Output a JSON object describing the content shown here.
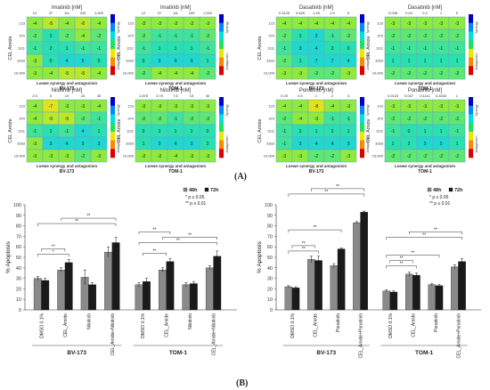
{
  "panels": {
    "a_label": "(A)",
    "b_label": "(B)"
  },
  "colors": {
    "cell_mid": "#2fe3a8",
    "cell_green": "#7cea4a",
    "cell_yellow": "#cdea30",
    "heat_grid": "#6fa0c8",
    "bar_48h": "#8a8a8a",
    "bar_72h": "#1a1a1a",
    "bracket": "#333333"
  },
  "chart_data": [
    {
      "id": "imatinib-bv173",
      "type": "heatmap",
      "title": "Imatinib [nM]",
      "x_ticks": [
        "12",
        "37",
        "111",
        "333",
        "1,000"
      ],
      "y_ticks": [
        "123",
        "370",
        "1111",
        "3333",
        "10,000"
      ],
      "ylabel": "CEL Amide",
      "xlabel": "Loewe synergy and antagonism",
      "cell_line": "BV-173",
      "legend": {
        "top": "Synergy",
        "bottom": "Antagonism"
      },
      "values": [
        [
          -4,
          -5,
          -4,
          -6,
          -4
        ],
        [
          -2,
          1,
          -2,
          -4,
          -2
        ],
        [
          -1,
          2,
          1,
          -1,
          -1
        ],
        [
          -3,
          0,
          4,
          5,
          0
        ],
        [
          -3,
          -4,
          -5,
          -5,
          -4
        ]
      ]
    },
    {
      "id": "imatinib-tom1",
      "type": "heatmap",
      "title": "Imatinib [nM]",
      "x_ticks": [
        "12",
        "37",
        "111",
        "333",
        "1,000"
      ],
      "y_ticks": [
        "123",
        "370",
        "1111",
        "3333",
        "10,000"
      ],
      "ylabel": "CEL Amide",
      "xlabel": "Loewe synergy and antagonism",
      "cell_line": "TOM-1",
      "legend": {
        "top": "Synergy",
        "bottom": "Antagonism"
      },
      "values": [
        [
          -3,
          -3,
          -3,
          -3,
          -3
        ],
        [
          -2,
          -1,
          -1,
          -1,
          -2
        ],
        [
          -1,
          1,
          1,
          1,
          -1
        ],
        [
          0,
          3,
          4,
          4,
          1
        ],
        [
          -2,
          -4,
          -4,
          -4,
          -2
        ]
      ]
    },
    {
      "id": "dasatinib-bv173",
      "type": "heatmap",
      "title": "Dasatinib [nM]",
      "x_ticks": [
        "0.3125",
        "0.625",
        "1.25",
        "2.5",
        "5"
      ],
      "y_ticks": [
        "123",
        "370",
        "1111",
        "3333",
        "10,000"
      ],
      "ylabel": "CEL Amide",
      "xlabel": "Loewe synergy and antagonism",
      "cell_line": "BV-173",
      "legend": {
        "top": "Synergy",
        "bottom": "Antagonism"
      },
      "values": [
        [
          -4,
          -4,
          -4,
          -4,
          -4
        ],
        [
          -2,
          1,
          3,
          -1,
          -2
        ],
        [
          -1,
          3,
          4,
          2,
          0
        ],
        [
          -2,
          1,
          7,
          7,
          4
        ],
        [
          -3,
          -3,
          -2,
          -2,
          -3
        ]
      ]
    },
    {
      "id": "dasatinib-tom1",
      "type": "heatmap",
      "title": "Dasatinib [nM]",
      "x_ticks": [
        "0.008",
        "0.04",
        "0.2",
        "1",
        "5"
      ],
      "y_ticks": [
        "123",
        "370",
        "1111",
        "3333",
        "10,000"
      ],
      "ylabel": "CEL Amide",
      "xlabel": "Loewe synergy and antagonism",
      "cell_line": "TOM-1",
      "legend": {
        "top": "Synergy",
        "bottom": "Antagonism"
      },
      "values": [
        [
          -3,
          -3,
          -3,
          -3,
          -3
        ],
        [
          -2,
          -2,
          -2,
          -2,
          -2
        ],
        [
          -1,
          -1,
          -1,
          -1,
          -1
        ],
        [
          1,
          1,
          1,
          1,
          1
        ],
        [
          -2,
          -2,
          -2,
          -2,
          -2
        ]
      ]
    },
    {
      "id": "nilotinib-bv173",
      "type": "heatmap",
      "title": "Nilotinib [nM]",
      "x_ticks": [
        "2.5",
        "5",
        "10",
        "20",
        "40"
      ],
      "y_ticks": [
        "123",
        "370",
        "1111",
        "3333",
        "10,000"
      ],
      "ylabel": "CEL Amide",
      "xlabel": "Loewe synergy and antagonism",
      "cell_line": "BV-173",
      "legend": {
        "top": "Synergy",
        "bottom": "Antagonism"
      },
      "values": [
        [
          -4,
          -7,
          -3,
          -3,
          -4
        ],
        [
          -4,
          -5,
          -5,
          -2,
          -1
        ],
        [
          -1,
          1,
          -1,
          4,
          1
        ],
        [
          -3,
          3,
          4,
          3,
          3
        ],
        [
          -3,
          -3,
          -3,
          -2,
          -3
        ]
      ]
    },
    {
      "id": "nilotinib-tom1",
      "type": "heatmap",
      "title": "Nilotinib [nM]",
      "x_ticks": [
        "1.875",
        "3.75",
        "7.5",
        "15",
        "30"
      ],
      "y_ticks": [
        "123",
        "370",
        "1111",
        "3333",
        "10,000"
      ],
      "ylabel": "CEL Amide",
      "xlabel": "Loewe synergy and antagonism",
      "cell_line": "TOM-1",
      "legend": {
        "top": "Synergy",
        "bottom": "Antagonism"
      },
      "values": [
        [
          -3,
          -3,
          -3,
          -3,
          -3
        ],
        [
          -2,
          -2,
          -1,
          -2,
          -2
        ],
        [
          0,
          1,
          1,
          1,
          0
        ],
        [
          1,
          3,
          4,
          3,
          2
        ],
        [
          -3,
          -3,
          -4,
          -3,
          -3
        ]
      ]
    },
    {
      "id": "ponatinib-bv173",
      "type": "heatmap",
      "title": "Ponatinib [nM]",
      "x_ticks": [
        "0.25",
        "0.5",
        "1",
        "2",
        "4"
      ],
      "y_ticks": [
        "123",
        "370",
        "1111",
        "3333",
        "10,000"
      ],
      "ylabel": "CEL Amide",
      "xlabel": "Loewe synergy and antagonism",
      "cell_line": "BV-173",
      "legend": {
        "top": "Synergy",
        "bottom": "Antagonism"
      },
      "values": [
        [
          -4,
          -4,
          -8,
          -4,
          -3
        ],
        [
          -2,
          -4,
          -3,
          -1,
          -1
        ],
        [
          -1,
          2,
          1,
          2,
          1
        ],
        [
          -1,
          3,
          4,
          4,
          3
        ],
        [
          -3,
          -3,
          -2,
          -2,
          -3
        ]
      ]
    },
    {
      "id": "ponatinib-tom1",
      "type": "heatmap",
      "title": "Ponatinib [nM]",
      "x_ticks": [
        "0.0123",
        "0.037",
        "0.1111",
        "0.3333",
        "1"
      ],
      "y_ticks": [
        "123",
        "370",
        "1111",
        "3333",
        "10,000"
      ],
      "ylabel": "CEL Amide",
      "xlabel": "Loewe synergy and antagonism",
      "cell_line": "TOM-1",
      "legend": {
        "top": "Synergy",
        "bottom": "Antagonism"
      },
      "values": [
        [
          -3,
          -3,
          -3,
          -3,
          -3
        ],
        [
          -2,
          -2,
          -2,
          -2,
          -2
        ],
        [
          -1,
          0,
          1,
          1,
          -1
        ],
        [
          1,
          2,
          3,
          3,
          1
        ],
        [
          -2,
          -2,
          -2,
          -2,
          -2
        ]
      ]
    },
    {
      "id": "apoptosis-nilotinib",
      "type": "bar",
      "ylabel": "% Apoptosis",
      "ylim": [
        0,
        100
      ],
      "yticks": [
        0,
        10,
        20,
        30,
        40,
        50,
        60,
        70,
        80,
        90,
        100
      ],
      "categories": [
        "DMSO 0.1%",
        "CEL_Amide",
        "Nilotinib",
        "CEL_Amide+Nilotinib",
        "DMSO 0.1%",
        "CEL_Amide",
        "Nilotinib",
        "CEL_Amide+Nilotinib"
      ],
      "groups": [
        {
          "label": "BV-173",
          "from": 0,
          "to": 3
        },
        {
          "label": "TOM-1",
          "from": 4,
          "to": 7
        }
      ],
      "series": [
        {
          "name": "48h",
          "values": [
            30,
            38,
            31,
            55,
            24,
            38,
            24,
            40
          ],
          "errors": [
            2,
            2,
            7,
            5,
            2,
            2,
            2,
            2
          ]
        },
        {
          "name": "72h",
          "values": [
            28,
            45,
            24,
            64,
            27,
            46,
            25,
            51
          ],
          "errors": [
            2,
            3,
            2,
            5,
            3,
            3,
            2,
            5
          ]
        }
      ],
      "legend": [
        "48h",
        "72h"
      ],
      "significance": [
        "* p ≤ 0.05",
        "** p ≤ 0.01"
      ],
      "brackets": [
        {
          "from": 0,
          "to": 1,
          "label": "*"
        },
        {
          "from": 0.5,
          "to": 1.5,
          "label": "**"
        },
        {
          "from": 0,
          "to": 3,
          "label": "**"
        },
        {
          "from": 1,
          "to": 3,
          "label": "**"
        },
        {
          "from": 4,
          "to": 5,
          "label": "**"
        },
        {
          "from": 4.5,
          "to": 5.5,
          "label": "**"
        },
        {
          "from": 4,
          "to": 7,
          "label": "**"
        },
        {
          "from": 5,
          "to": 7,
          "label": "**"
        }
      ]
    },
    {
      "id": "apoptosis-ponatinib",
      "type": "bar",
      "ylabel": "% Apoptosis",
      "ylim": [
        0,
        100
      ],
      "yticks": [
        0,
        10,
        20,
        30,
        40,
        50,
        60,
        70,
        80,
        90,
        100
      ],
      "categories": [
        "DMSO 0.1%",
        "CEL_Amide",
        "Ponatinib",
        "CEL_Amide+Ponatinib",
        "DMSO 0.1%",
        "CEL_Amide",
        "Ponatinib",
        "CEL_Amide+Ponatinib"
      ],
      "groups": [
        {
          "label": "BV-173",
          "from": 0,
          "to": 3
        },
        {
          "label": "TOM-1",
          "from": 4,
          "to": 7
        }
      ],
      "series": [
        {
          "name": "48h",
          "values": [
            22,
            48,
            42,
            83,
            18,
            34,
            24,
            41
          ],
          "errors": [
            1,
            3,
            2,
            1,
            1,
            2,
            1,
            2
          ]
        },
        {
          "name": "72h",
          "values": [
            21,
            47,
            58,
            93,
            17,
            33,
            23,
            46
          ],
          "errors": [
            1,
            4,
            1,
            1,
            1,
            2,
            1,
            3
          ]
        }
      ],
      "legend": [
        "48h",
        "72h"
      ],
      "significance": [
        "* p ≤ 0.05",
        "** p ≤ 0.01"
      ],
      "brackets": [
        {
          "from": 0,
          "to": 1,
          "label": "**"
        },
        {
          "from": 0.5,
          "to": 1.5,
          "label": "**"
        },
        {
          "from": 0,
          "to": 2,
          "label": "**"
        },
        {
          "from": 0,
          "to": 3,
          "label": "**"
        },
        {
          "from": 1,
          "to": 3,
          "label": "**"
        },
        {
          "from": 4,
          "to": 5,
          "label": "**"
        },
        {
          "from": 4.5,
          "to": 5.5,
          "label": "**"
        },
        {
          "from": 4,
          "to": 6,
          "label": "**"
        },
        {
          "from": 4,
          "to": 7,
          "label": "**"
        },
        {
          "from": 5,
          "to": 7,
          "label": "**"
        }
      ]
    }
  ]
}
